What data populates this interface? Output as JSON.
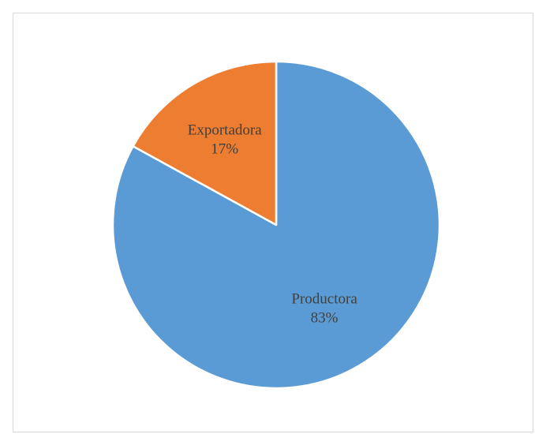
{
  "chart_data": {
    "type": "pie",
    "title": "",
    "slices": [
      {
        "name": "Productora",
        "value": 83,
        "percent_label": "83%",
        "color": "#5b9bd5"
      },
      {
        "name": "Exportadora",
        "value": 17,
        "percent_label": "17%",
        "color": "#ed7d31"
      }
    ],
    "start_angle": "12 o'clock",
    "direction": "clockwise",
    "legend": "none",
    "data_labels": "category name and percentage inside slices",
    "slice_border_color": "#ffffff"
  }
}
